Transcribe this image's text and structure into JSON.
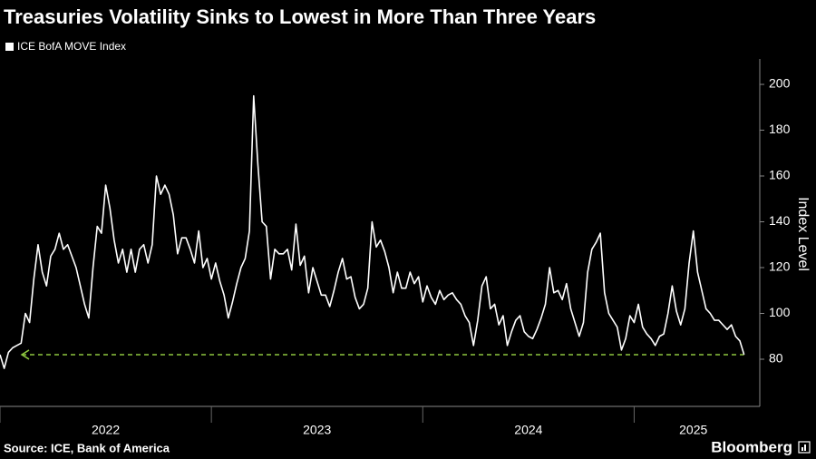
{
  "chart_data": {
    "type": "line",
    "title": "Treasuries Volatility Sinks to Lowest in More Than Three Years",
    "y_label": "Index Level",
    "source": "Source: ICE, Bank of America",
    "brand": "Bloomberg",
    "x": [
      2022,
      2022.02,
      2022.04,
      2022.06,
      2022.08,
      2022.1,
      2022.12,
      2022.14,
      2022.16,
      2022.18,
      2022.2,
      2022.22,
      2022.24,
      2022.26,
      2022.28,
      2022.3,
      2022.32,
      2022.34,
      2022.36,
      2022.38,
      2022.4,
      2022.42,
      2022.44,
      2022.46,
      2022.48,
      2022.5,
      2022.52,
      2022.54,
      2022.56,
      2022.58,
      2022.6,
      2022.62,
      2022.64,
      2022.66,
      2022.68,
      2022.7,
      2022.72,
      2022.74,
      2022.76,
      2022.78,
      2022.8,
      2022.82,
      2022.84,
      2022.86,
      2022.88,
      2022.9,
      2022.92,
      2022.94,
      2022.96,
      2022.98,
      2023,
      2023.02,
      2023.04,
      2023.06,
      2023.08,
      2023.1,
      2023.12,
      2023.14,
      2023.16,
      2023.18,
      2023.2,
      2023.22,
      2023.24,
      2023.26,
      2023.28,
      2023.3,
      2023.32,
      2023.34,
      2023.36,
      2023.38,
      2023.4,
      2023.42,
      2023.44,
      2023.46,
      2023.48,
      2023.5,
      2023.52,
      2023.54,
      2023.56,
      2023.58,
      2023.6,
      2023.62,
      2023.64,
      2023.66,
      2023.68,
      2023.7,
      2023.72,
      2023.74,
      2023.76,
      2023.78,
      2023.8,
      2023.82,
      2023.84,
      2023.86,
      2023.88,
      2023.9,
      2023.92,
      2023.94,
      2023.96,
      2023.98,
      2024,
      2024.02,
      2024.04,
      2024.06,
      2024.08,
      2024.1,
      2024.12,
      2024.14,
      2024.16,
      2024.18,
      2024.2,
      2024.22,
      2024.24,
      2024.26,
      2024.28,
      2024.3,
      2024.32,
      2024.34,
      2024.36,
      2024.38,
      2024.4,
      2024.42,
      2024.44,
      2024.46,
      2024.48,
      2024.5,
      2024.52,
      2024.54,
      2024.56,
      2024.58,
      2024.6,
      2024.62,
      2024.64,
      2024.66,
      2024.68,
      2024.7,
      2024.72,
      2024.74,
      2024.76,
      2024.78,
      2024.8,
      2024.82,
      2024.84,
      2024.86,
      2024.88,
      2024.9,
      2024.92,
      2024.94,
      2024.96,
      2024.98,
      2025,
      2025.02,
      2025.04,
      2025.06,
      2025.08,
      2025.1,
      2025.12,
      2025.14,
      2025.16,
      2025.18,
      2025.2,
      2025.22,
      2025.24,
      2025.26,
      2025.28,
      2025.3,
      2025.32,
      2025.34,
      2025.36,
      2025.38,
      2025.4,
      2025.42,
      2025.44,
      2025.46,
      2025.48,
      2025.5,
      2025.52
    ],
    "series": [
      {
        "name": "ICE BofA MOVE Index",
        "color": "#ffffff",
        "values": [
          82,
          76,
          83,
          85,
          86,
          87,
          100,
          96,
          115,
          130,
          118,
          112,
          125,
          128,
          135,
          128,
          130,
          125,
          120,
          112,
          104,
          98,
          120,
          138,
          135,
          156,
          146,
          132,
          122,
          128,
          118,
          128,
          118,
          128,
          130,
          122,
          130,
          160,
          152,
          156,
          152,
          143,
          126,
          133,
          133,
          128,
          122,
          136,
          120,
          124,
          115,
          122,
          114,
          108,
          98,
          105,
          113,
          120,
          124,
          136,
          195,
          165,
          140,
          138,
          115,
          128,
          126,
          126,
          128,
          119,
          139,
          121,
          125,
          109,
          120,
          114,
          108,
          108,
          103,
          110,
          118,
          124,
          115,
          116,
          107,
          102,
          104,
          111,
          140,
          129,
          132,
          127,
          120,
          109,
          118,
          111,
          111,
          118,
          113,
          116,
          105,
          112,
          107,
          104,
          110,
          106,
          108,
          109,
          106,
          104,
          99,
          96,
          86,
          97,
          112,
          116,
          102,
          104,
          95,
          99,
          86,
          92,
          97,
          99,
          92,
          90,
          89,
          93,
          98,
          104,
          120,
          109,
          110,
          106,
          113,
          102,
          96,
          90,
          96,
          118,
          128,
          131,
          135,
          109,
          100,
          97,
          94,
          84,
          89,
          99,
          96,
          104,
          94,
          91,
          89,
          86,
          90,
          91,
          100,
          112,
          101,
          95,
          102,
          122,
          136,
          118,
          110,
          102,
          100,
          97,
          97,
          95,
          93,
          95,
          90,
          88,
          82
        ]
      }
    ],
    "reference_line": {
      "value": 82,
      "color": "#8dc63f"
    },
    "xlim": [
      2022,
      2025.56
    ],
    "xticks": [
      {
        "value": 2022,
        "label": "2022"
      },
      {
        "value": 2023,
        "label": "2023"
      },
      {
        "value": 2024,
        "label": "2024"
      },
      {
        "value": 2025,
        "label": "2025"
      }
    ],
    "ylim": [
      59.4,
      211.1
    ],
    "yticks": [
      80,
      100,
      120,
      140,
      160,
      180,
      200
    ],
    "grid": false
  }
}
